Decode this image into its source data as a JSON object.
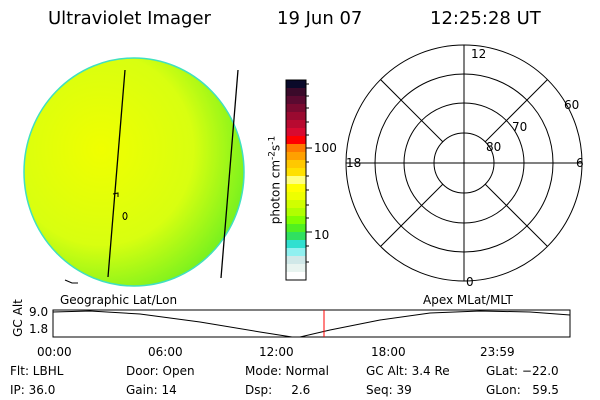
{
  "header": {
    "instrument": "Ultraviolet Imager",
    "date": "19 Jun 07",
    "time": "12:25:28 UT"
  },
  "colorbar": {
    "label": "photon cm",
    "label_exp1": "-2",
    "label_mid": "s",
    "label_exp2": "-1",
    "ticks": [
      "100",
      "10"
    ],
    "colors": [
      "#0a0a2a",
      "#3a0a2a",
      "#5a0a30",
      "#7a0a30",
      "#9a0a30",
      "#b80a30",
      "#d80a30",
      "#ff0000",
      "#ff7a00",
      "#ffa000",
      "#ffc800",
      "#ffe000",
      "#ffff80",
      "#ffff00",
      "#eeff00",
      "#d0ff00",
      "#b0ff00",
      "#80ff00",
      "#50f020",
      "#30e060",
      "#30e0d0",
      "#90f0f0",
      "#d0e8e8",
      "#e8f4f0",
      "#ffffff"
    ]
  },
  "polar": {
    "hour_labels": [
      "12",
      "6",
      "0",
      "18"
    ],
    "lat_labels": [
      "60",
      "70",
      "80"
    ]
  },
  "image": {
    "colors": {
      "main": "#e0ff00",
      "edge": "#60f020",
      "rim": "#40e0c0"
    }
  },
  "timeline": {
    "left_label": "Geographic Lat/Lon",
    "right_label": "Apex MLat/MLT",
    "y_label": "GC Alt",
    "y_ticks": [
      "9.0",
      "1.8"
    ],
    "x_ticks": [
      "00:00",
      "06:00",
      "12:00",
      "18:00",
      "23:59"
    ],
    "current_marker_color": "#ff0000"
  },
  "status": {
    "flt": "Flt: LBHL",
    "ip": "IP: 36.0",
    "door": "Door: Open",
    "gain": "Gain: 14",
    "mode": "Mode: Normal",
    "dsp": "Dsp:     2.6",
    "gc_alt": "GC Alt: 3.4 Re",
    "seq": "Seq: 39",
    "glat": "GLat: −22.0",
    "glon": "GLon:   59.5"
  }
}
